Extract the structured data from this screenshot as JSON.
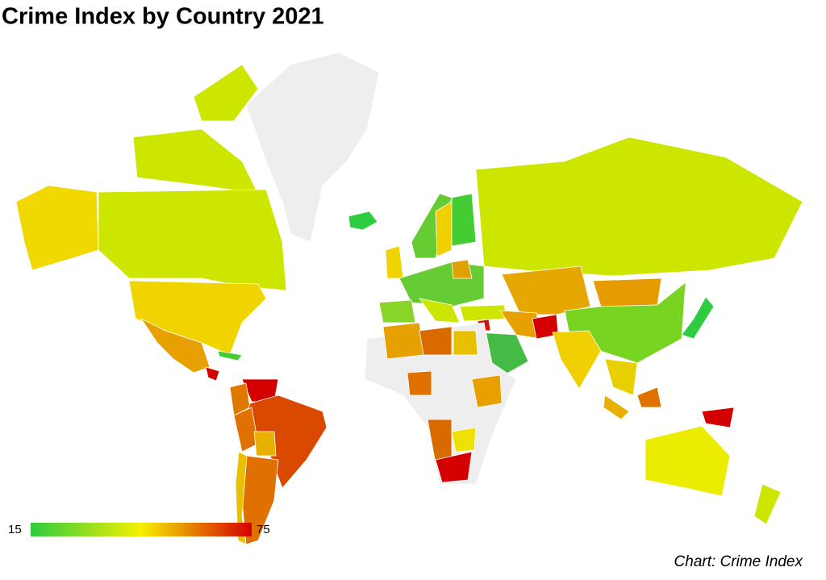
{
  "title": "Crime Index by Country 2021",
  "legend": {
    "min": 15,
    "max": 75,
    "colors": [
      "#2ecc40",
      "#f5f000",
      "#d40000"
    ]
  },
  "credit": "Chart: Crime Index"
}
